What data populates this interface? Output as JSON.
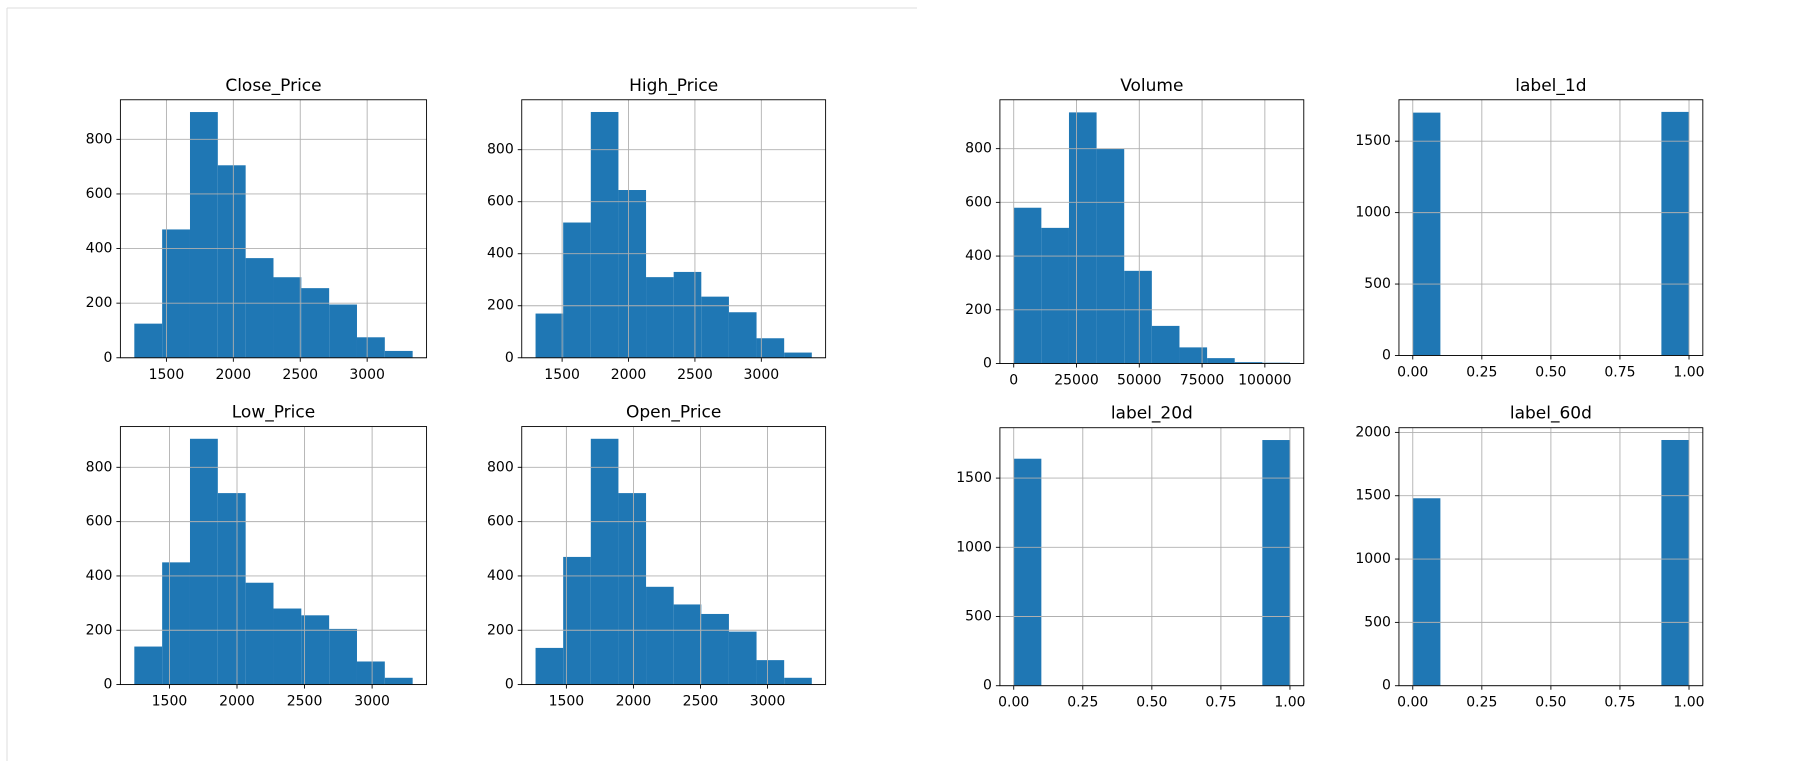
{
  "chart_data": [
    {
      "type": "histogram",
      "title": "Close_Price",
      "color": "#1f77b4",
      "grid": true,
      "bins": [
        1260,
        1468,
        1676,
        1884,
        2092,
        2300,
        2508,
        2716,
        2924,
        3132,
        3340
      ],
      "values": [
        125,
        470,
        900,
        705,
        365,
        295,
        255,
        195,
        75,
        25
      ],
      "xlim": [
        1156,
        3444
      ],
      "ylim": [
        0,
        945
      ],
      "xticks": [
        1500,
        2000,
        2500,
        3000
      ],
      "yticks": [
        0,
        200,
        400,
        600,
        800
      ]
    },
    {
      "type": "histogram",
      "title": "High_Price",
      "color": "#1f77b4",
      "grid": true,
      "bins": [
        1300,
        1508,
        1716,
        1924,
        2132,
        2340,
        2548,
        2756,
        2964,
        3172,
        3380
      ],
      "values": [
        170,
        520,
        945,
        645,
        310,
        330,
        235,
        175,
        75,
        20
      ],
      "xlim": [
        1196,
        3484
      ],
      "ylim": [
        0,
        992
      ],
      "xticks": [
        1500,
        2000,
        2500,
        3000
      ],
      "yticks": [
        0,
        200,
        400,
        600,
        800
      ]
    },
    {
      "type": "histogram",
      "title": "Low_Price",
      "color": "#1f77b4",
      "grid": true,
      "bins": [
        1240,
        1446,
        1652,
        1858,
        2064,
        2270,
        2476,
        2682,
        2888,
        3094,
        3300
      ],
      "values": [
        140,
        450,
        905,
        705,
        375,
        280,
        255,
        205,
        85,
        25
      ],
      "xlim": [
        1137,
        3403
      ],
      "ylim": [
        0,
        950
      ],
      "xticks": [
        1500,
        2000,
        2500,
        3000
      ],
      "yticks": [
        0,
        200,
        400,
        600,
        800
      ]
    },
    {
      "type": "histogram",
      "title": "Open_Price",
      "color": "#1f77b4",
      "grid": true,
      "bins": [
        1270,
        1476,
        1682,
        1888,
        2094,
        2300,
        2506,
        2712,
        2918,
        3124,
        3330
      ],
      "values": [
        135,
        470,
        905,
        705,
        360,
        295,
        260,
        195,
        90,
        25
      ],
      "xlim": [
        1167,
        3433
      ],
      "ylim": [
        0,
        950
      ],
      "xticks": [
        1500,
        2000,
        2500,
        3000
      ],
      "yticks": [
        0,
        200,
        400,
        600,
        800
      ]
    },
    {
      "type": "histogram",
      "title": "Volume",
      "color": "#1f77b4",
      "grid": true,
      "bins": [
        0,
        11000,
        22000,
        33000,
        44000,
        55000,
        66000,
        77000,
        88000,
        99000,
        110000
      ],
      "values": [
        580,
        505,
        935,
        800,
        345,
        140,
        60,
        20,
        5,
        3
      ],
      "xlim": [
        -5500,
        115500
      ],
      "ylim": [
        0,
        982
      ],
      "xticks": [
        0,
        25000,
        50000,
        75000,
        100000
      ],
      "yticks": [
        0,
        200,
        400,
        600,
        800
      ]
    },
    {
      "type": "histogram",
      "title": "label_1d",
      "color": "#1f77b4",
      "grid": true,
      "bins": [
        0,
        0.1,
        0.2,
        0.3,
        0.4,
        0.5,
        0.6,
        0.7,
        0.8,
        0.9,
        1
      ],
      "values": [
        1700,
        0,
        0,
        0,
        0,
        0,
        0,
        0,
        0,
        1705
      ],
      "xlim": [
        -0.05,
        1.05
      ],
      "ylim": [
        0,
        1790
      ],
      "xticks": [
        {
          "value": 0,
          "label": "0.00"
        },
        {
          "value": 0.25,
          "label": "0.25"
        },
        {
          "value": 0.5,
          "label": "0.50"
        },
        {
          "value": 0.75,
          "label": "0.75"
        },
        {
          "value": 1,
          "label": "1.00"
        }
      ],
      "yticks": [
        0,
        500,
        1000,
        1500
      ]
    },
    {
      "type": "histogram",
      "title": "label_20d",
      "color": "#1f77b4",
      "grid": true,
      "bins": [
        0,
        0.1,
        0.2,
        0.3,
        0.4,
        0.5,
        0.6,
        0.7,
        0.8,
        0.9,
        1
      ],
      "values": [
        1640,
        0,
        0,
        0,
        0,
        0,
        0,
        0,
        0,
        1775
      ],
      "xlim": [
        -0.05,
        1.05
      ],
      "ylim": [
        0,
        1864
      ],
      "xticks": [
        {
          "value": 0,
          "label": "0.00"
        },
        {
          "value": 0.25,
          "label": "0.25"
        },
        {
          "value": 0.5,
          "label": "0.50"
        },
        {
          "value": 0.75,
          "label": "0.75"
        },
        {
          "value": 1,
          "label": "1.00"
        }
      ],
      "yticks": [
        0,
        500,
        1000,
        1500
      ]
    },
    {
      "type": "histogram",
      "title": "label_60d",
      "color": "#1f77b4",
      "grid": true,
      "bins": [
        0,
        0.1,
        0.2,
        0.3,
        0.4,
        0.5,
        0.6,
        0.7,
        0.8,
        0.9,
        1
      ],
      "values": [
        1480,
        0,
        0,
        0,
        0,
        0,
        0,
        0,
        0,
        1940
      ],
      "xlim": [
        -0.05,
        1.05
      ],
      "ylim": [
        0,
        2037
      ],
      "xticks": [
        {
          "value": 0,
          "label": "0.00"
        },
        {
          "value": 0.25,
          "label": "0.25"
        },
        {
          "value": 0.5,
          "label": "0.50"
        },
        {
          "value": 0.75,
          "label": "0.75"
        },
        {
          "value": 1,
          "label": "1.00"
        }
      ],
      "yticks": [
        0,
        500,
        1000,
        1500,
        2000
      ]
    }
  ]
}
